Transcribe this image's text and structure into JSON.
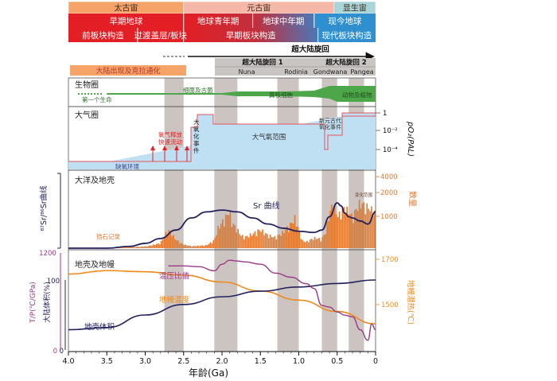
{
  "colors": {
    "archean": "#f6a36a",
    "proterozoic": "#f4b7a8",
    "phanerozoic": "#a9d5d8",
    "early_earth": "#e31e24",
    "phanero_blue": "#2f8fcf",
    "grey_box": "#c9c5c2",
    "green": "#4ea64a",
    "light_blue": "#bfe0f3",
    "pink": "#e3545a",
    "sr_navy": "#23215e",
    "zircon_orange": "#e07a30",
    "mantle_orange": "#ef8a1a",
    "purple": "#9a3a86",
    "grey_band": "#cbc4c0"
  },
  "eons": [
    {
      "label": "太古宙",
      "start": 4.0,
      "end": 2.5,
      "color": "#f6a36a"
    },
    {
      "label": "元古宙",
      "start": 2.5,
      "end": 0.541,
      "color": "#f4b7a8"
    },
    {
      "label": "显生宙",
      "start": 0.541,
      "end": 0.0,
      "color": "#a9d5d8"
    }
  ],
  "eras": [
    {
      "label": "早期地球",
      "start": 4.0,
      "end": 2.5
    },
    {
      "label": "地球青年期",
      "start": 2.5,
      "end": 1.6
    },
    {
      "label": "地球中年期",
      "start": 1.6,
      "end": 0.8
    },
    {
      "label": "现今地球",
      "start": 0.8,
      "end": 0.0
    }
  ],
  "tectonics": [
    {
      "label": "前板块构造",
      "start": 4.0,
      "end": 3.1
    },
    {
      "label": "过渡盖层/板块",
      "start": 3.1,
      "end": 2.5
    },
    {
      "label": "早期板块构造",
      "start": 2.5,
      "end": 0.75
    },
    {
      "label": "现代板块构造",
      "start": 0.75,
      "end": 0.0
    }
  ],
  "supercycle": {
    "title": "超大陆旋回",
    "crust_label": "大陆出现及克拉通化",
    "cycle1": "超大陆旋回 1",
    "cycle2": "超大陆旋回 2",
    "names": [
      "Nuna",
      "Rodinia",
      "Gondwana",
      "Pangea"
    ]
  },
  "panels": {
    "biosphere": {
      "title": "生物圈",
      "first_life": "第一个生命",
      "bacteria": "细菌及古菌",
      "eukaryotes": "真核细胞",
      "animals": "动物及植物"
    },
    "atmosphere": {
      "title": "大气圈",
      "anoxic": "缺氧环境",
      "gas_release": "氧气释放 快速流动",
      "goe": "大氧化事件",
      "oxygen_range": "大气氧范围",
      "noe": "新元古代 氧化事件",
      "axis_title": "pO₂(PAL)",
      "ticks": [
        "1",
        "10⁻²",
        "10⁻⁴"
      ]
    },
    "ocean": {
      "title": "大洋及地壳",
      "sr_label": "Sr 曲线",
      "zircon_label": "锆石记录",
      "sr_axis": "⁸⁷Sr/⁸⁶Sr曲线",
      "count_axis": "数量",
      "count_ticks": [
        "4000",
        "2000",
        "1000"
      ],
      "small_tag": "变化范围"
    },
    "crust": {
      "title": "地壳及地幔",
      "tp_label": "温压比值",
      "mantle_label": "地幔温度",
      "crust_label": "地壳体积",
      "left_axis1": "T/P(℃/GPa)",
      "left_axis2": "大陆体积(%)",
      "right_axis": "地幔潜热(℃)",
      "left_ticks": [
        "1200",
        "100",
        "0",
        "0"
      ],
      "right_ticks": [
        "1700",
        "1500"
      ]
    }
  },
  "xaxis": {
    "label": "年龄(Ga)",
    "ticks": [
      {
        "v": 4.0,
        "t": "4.0"
      },
      {
        "v": 3.5,
        "t": "3.5"
      },
      {
        "v": 3.0,
        "t": "3.0"
      },
      {
        "v": 2.5,
        "t": "2.5"
      },
      {
        "v": 2.0,
        "t": "2.0"
      },
      {
        "v": 1.5,
        "t": "1.5"
      },
      {
        "v": 1.0,
        "t": "1.0"
      },
      {
        "v": 0.5,
        "t": "0.5"
      },
      {
        "v": 0.0,
        "t": "0"
      }
    ]
  },
  "chart_data": [
    {
      "type": "area",
      "title": "锆石记录",
      "x_unit": "Ga",
      "x": [
        3.5,
        3.3,
        3.0,
        2.9,
        2.8,
        2.72,
        2.68,
        2.6,
        2.5,
        2.4,
        2.2,
        2.1,
        2.05,
        2.0,
        1.95,
        1.9,
        1.87,
        1.8,
        1.75,
        1.7,
        1.6,
        1.5,
        1.4,
        1.3,
        1.2,
        1.1,
        1.05,
        1.0,
        0.95,
        0.9,
        0.8,
        0.7,
        0.65,
        0.6,
        0.55,
        0.5,
        0.45,
        0.4,
        0.3,
        0.25,
        0.2,
        0.1,
        0.0
      ],
      "values": [
        20,
        30,
        60,
        110,
        180,
        560,
        620,
        300,
        130,
        70,
        100,
        280,
        700,
        900,
        1100,
        1350,
        900,
        650,
        450,
        380,
        500,
        650,
        450,
        380,
        560,
        850,
        1050,
        650,
        260,
        220,
        360,
        320,
        560,
        1250,
        1750,
        1150,
        1250,
        1550,
        1100,
        1450,
        1750,
        1550,
        1300
      ],
      "ylim": [
        0,
        4000
      ]
    },
    {
      "type": "line",
      "title": "Sr 曲线",
      "x_unit": "Ga",
      "x": [
        4.0,
        3.5,
        3.2,
        3.0,
        2.8,
        2.6,
        2.4,
        2.2,
        2.0,
        1.8,
        1.6,
        1.4,
        1.2,
        1.0,
        0.8,
        0.7,
        0.6,
        0.5,
        0.45,
        0.4,
        0.35,
        0.3,
        0.2,
        0.1,
        0.0
      ],
      "values": [
        0.0,
        0.0,
        0.03,
        0.08,
        0.16,
        0.3,
        0.5,
        0.6,
        0.63,
        0.6,
        0.5,
        0.4,
        0.33,
        0.28,
        0.26,
        0.3,
        0.52,
        0.75,
        0.7,
        0.58,
        0.52,
        0.5,
        0.45,
        0.4,
        0.6
      ],
      "ylim": [
        0,
        1
      ]
    },
    {
      "type": "line",
      "title": "温压比值",
      "x_unit": "Ga",
      "x": [
        2.7,
        2.5,
        2.3,
        2.1,
        2.0,
        1.9,
        1.8,
        1.7,
        1.5,
        1.3,
        1.1,
        0.9,
        0.8,
        0.7,
        0.6,
        0.5,
        0.4,
        0.3,
        0.2,
        0.1,
        0.05,
        0.0
      ],
      "values": [
        1040,
        1040,
        1030,
        980,
        1060,
        1110,
        1100,
        1090,
        1060,
        950,
        900,
        820,
        760,
        550,
        530,
        470,
        430,
        410,
        250,
        120,
        320,
        250
      ],
      "ylim": [
        0,
        1200
      ]
    },
    {
      "type": "line",
      "title": "地幔温度",
      "x_unit": "Ga",
      "x": [
        4.0,
        3.5,
        3.0,
        2.5,
        2.0,
        1.5,
        1.0,
        0.5,
        0.0
      ],
      "values": [
        1635,
        1650,
        1645,
        1630,
        1600,
        1560,
        1520,
        1470,
        1415
      ],
      "ylim": [
        1350,
        1750
      ]
    },
    {
      "type": "line",
      "title": "地壳体积",
      "x_unit": "Ga",
      "x": [
        4.0,
        3.5,
        3.0,
        2.5,
        2.0,
        1.5,
        1.0,
        0.5,
        0.0
      ],
      "values": [
        13,
        32,
        50,
        65,
        76,
        84,
        90,
        95,
        100
      ],
      "ylim": [
        0,
        100
      ]
    }
  ]
}
